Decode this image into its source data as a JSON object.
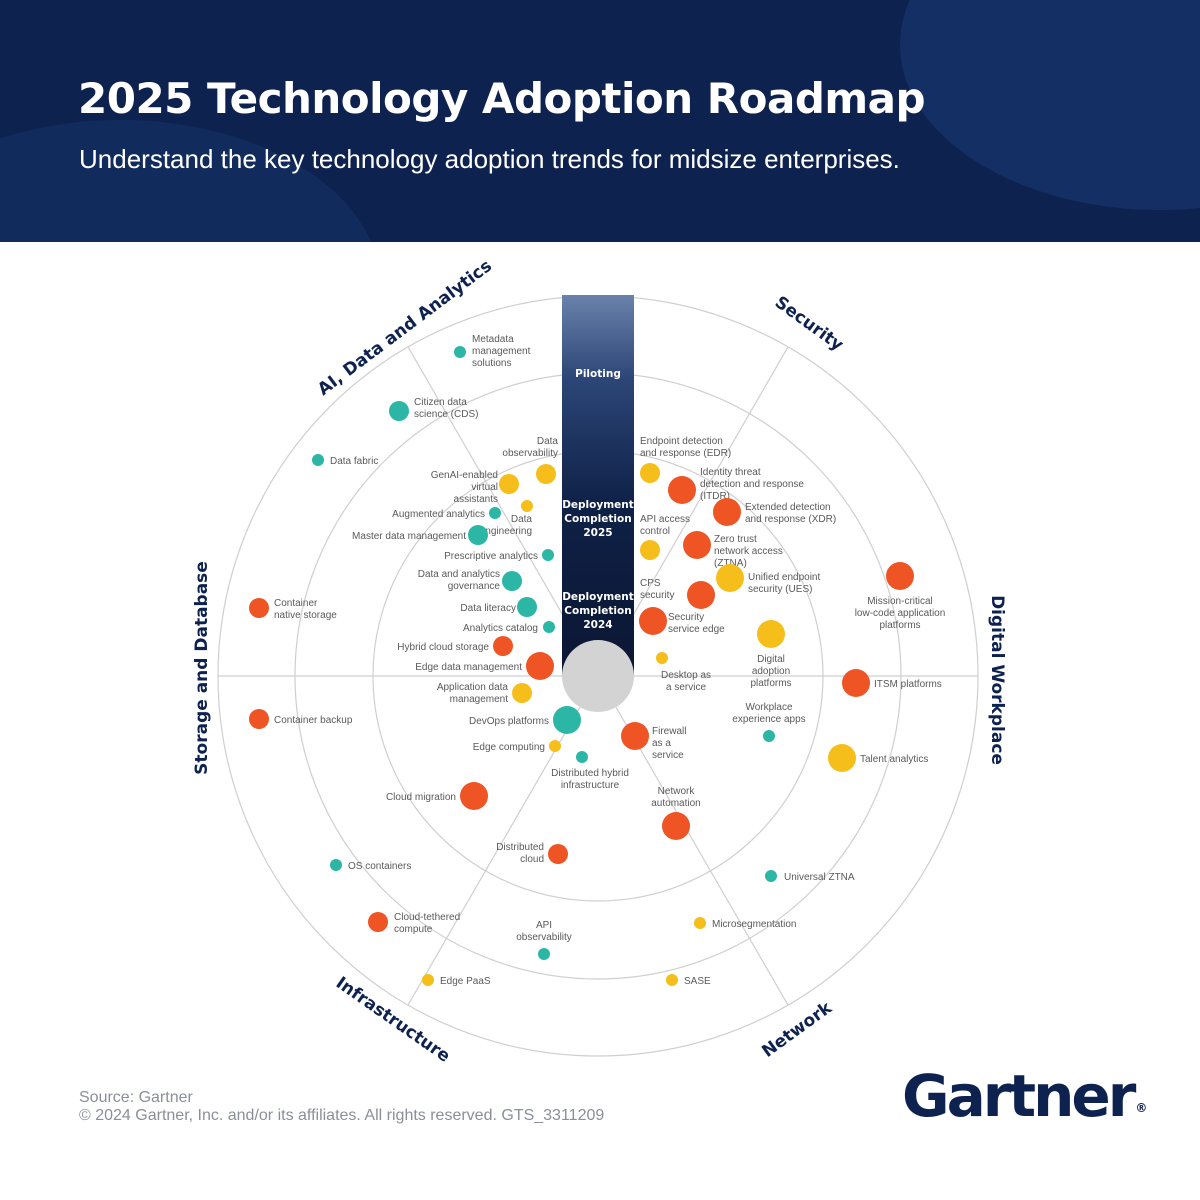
{
  "header": {
    "title": "2025 Technology Adoption Roadmap",
    "subtitle": "Understand the key technology adoption trends for midsize enterprises."
  },
  "colors": {
    "header_bg": "#0e2250",
    "piloting": "#f6be1b",
    "deploy_2025": "#ee5424",
    "deploy_2024": "#2bb6a5",
    "ring": "#cfcfcf",
    "center": "#d3d3d3"
  },
  "bar": {
    "piloting": "Piloting",
    "deploy_2025": [
      "Deployment",
      "Completion",
      "2025"
    ],
    "deploy_2024": [
      "Deployment",
      "Completion",
      "2024"
    ]
  },
  "sectors": [
    {
      "name": "AI, Data and Analytics"
    },
    {
      "name": "Security"
    },
    {
      "name": "Digital Workplace"
    },
    {
      "name": "Network"
    },
    {
      "name": "Infrastructure"
    },
    {
      "name": "Storage and Database"
    }
  ],
  "technologies": [
    {
      "name": "Metadata management solutions",
      "sector": "AI, Data and Analytics",
      "stage": "deploy_2024",
      "size": "small"
    },
    {
      "name": "Citizen data science (CDS)",
      "sector": "AI, Data and Analytics",
      "stage": "deploy_2024",
      "size": "medium"
    },
    {
      "name": "Data fabric",
      "sector": "AI, Data and Analytics",
      "stage": "deploy_2024",
      "size": "small"
    },
    {
      "name": "Data observability",
      "sector": "AI, Data and Analytics",
      "stage": "piloting",
      "size": "medium"
    },
    {
      "name": "GenAI-enabled virtual assistants",
      "sector": "AI, Data and Analytics",
      "stage": "piloting",
      "size": "medium"
    },
    {
      "name": "Augmented analytics",
      "sector": "AI, Data and Analytics",
      "stage": "deploy_2024",
      "size": "small"
    },
    {
      "name": "Data engineering",
      "sector": "AI, Data and Analytics",
      "stage": "piloting",
      "size": "small"
    },
    {
      "name": "Master data management",
      "sector": "AI, Data and Analytics",
      "stage": "deploy_2024",
      "size": "medium"
    },
    {
      "name": "Prescriptive analytics",
      "sector": "AI, Data and Analytics",
      "stage": "deploy_2024",
      "size": "small"
    },
    {
      "name": "Data and analytics governance",
      "sector": "AI, Data and Analytics",
      "stage": "deploy_2024",
      "size": "medium"
    },
    {
      "name": "Data literacy",
      "sector": "AI, Data and Analytics",
      "stage": "deploy_2024",
      "size": "medium"
    },
    {
      "name": "Analytics catalog",
      "sector": "AI, Data and Analytics",
      "stage": "deploy_2024",
      "size": "small"
    },
    {
      "name": "Endpoint detection and response (EDR)",
      "sector": "Security",
      "stage": "piloting",
      "size": "medium"
    },
    {
      "name": "Identity threat detection and response (ITDR)",
      "sector": "Security",
      "stage": "deploy_2025",
      "size": "large"
    },
    {
      "name": "Extended detection and response (XDR)",
      "sector": "Security",
      "stage": "deploy_2025",
      "size": "large"
    },
    {
      "name": "API access control",
      "sector": "Security",
      "stage": "piloting",
      "size": "medium"
    },
    {
      "name": "Zero trust network access (ZTNA)",
      "sector": "Security",
      "stage": "deploy_2025",
      "size": "large"
    },
    {
      "name": "Unified endpoint security (UES)",
      "sector": "Security",
      "stage": "piloting",
      "size": "large"
    },
    {
      "name": "CPS security",
      "sector": "Security",
      "stage": "deploy_2025",
      "size": "large"
    },
    {
      "name": "Security service edge",
      "sector": "Security",
      "stage": "deploy_2025",
      "size": "large"
    },
    {
      "name": "Mission-critical low-code application platforms",
      "sector": "Digital Workplace",
      "stage": "deploy_2025",
      "size": "large"
    },
    {
      "name": "Digital adoption platforms",
      "sector": "Digital Workplace",
      "stage": "piloting",
      "size": "large"
    },
    {
      "name": "Desktop as a service",
      "sector": "Digital Workplace",
      "stage": "piloting",
      "size": "small"
    },
    {
      "name": "ITSM platforms",
      "sector": "Digital Workplace",
      "stage": "deploy_2025",
      "size": "large"
    },
    {
      "name": "Workplace experience apps",
      "sector": "Digital Workplace",
      "stage": "deploy_2024",
      "size": "small"
    },
    {
      "name": "Talent analytics",
      "sector": "Digital Workplace",
      "stage": "piloting",
      "size": "large"
    },
    {
      "name": "Firewall as a service",
      "sector": "Network",
      "stage": "deploy_2025",
      "size": "large"
    },
    {
      "name": "Network automation",
      "sector": "Network",
      "stage": "deploy_2025",
      "size": "large"
    },
    {
      "name": "Universal ZTNA",
      "sector": "Network",
      "stage": "deploy_2024",
      "size": "small"
    },
    {
      "name": "Microsegmentation",
      "sector": "Network",
      "stage": "piloting",
      "size": "small"
    },
    {
      "name": "SASE",
      "sector": "Network",
      "stage": "piloting",
      "size": "small"
    },
    {
      "name": "Distributed hybrid infrastructure",
      "sector": "Infrastructure",
      "stage": "deploy_2024",
      "size": "small"
    },
    {
      "name": "Edge computing",
      "sector": "Infrastructure",
      "stage": "piloting",
      "size": "small"
    },
    {
      "name": "DevOps platforms",
      "sector": "Infrastructure",
      "stage": "deploy_2024",
      "size": "large"
    },
    {
      "name": "Cloud migration",
      "sector": "Infrastructure",
      "stage": "deploy_2025",
      "size": "large"
    },
    {
      "name": "Distributed cloud",
      "sector": "Infrastructure",
      "stage": "deploy_2025",
      "size": "medium"
    },
    {
      "name": "OS containers",
      "sector": "Infrastructure",
      "stage": "deploy_2024",
      "size": "small"
    },
    {
      "name": "Cloud-tethered compute",
      "sector": "Infrastructure",
      "stage": "deploy_2025",
      "size": "medium"
    },
    {
      "name": "API observability",
      "sector": "Infrastructure",
      "stage": "deploy_2024",
      "size": "small"
    },
    {
      "name": "Edge PaaS",
      "sector": "Infrastructure",
      "stage": "piloting",
      "size": "small"
    },
    {
      "name": "Hybrid cloud storage",
      "sector": "Storage and Database",
      "stage": "deploy_2025",
      "size": "medium"
    },
    {
      "name": "Edge data management",
      "sector": "Storage and Database",
      "stage": "deploy_2025",
      "size": "large"
    },
    {
      "name": "Application data management",
      "sector": "Storage and Database",
      "stage": "piloting",
      "size": "medium"
    },
    {
      "name": "Container native storage",
      "sector": "Storage and Database",
      "stage": "deploy_2025",
      "size": "medium"
    },
    {
      "name": "Container backup",
      "sector": "Storage and Database",
      "stage": "deploy_2025",
      "size": "medium"
    }
  ],
  "footer": {
    "source": "Source: Gartner",
    "copyright": "© 2024 Gartner, Inc. and/or its affiliates. All rights reserved. GTS_3311209"
  },
  "logo": {
    "text": "Gartner",
    "mark": "®"
  }
}
